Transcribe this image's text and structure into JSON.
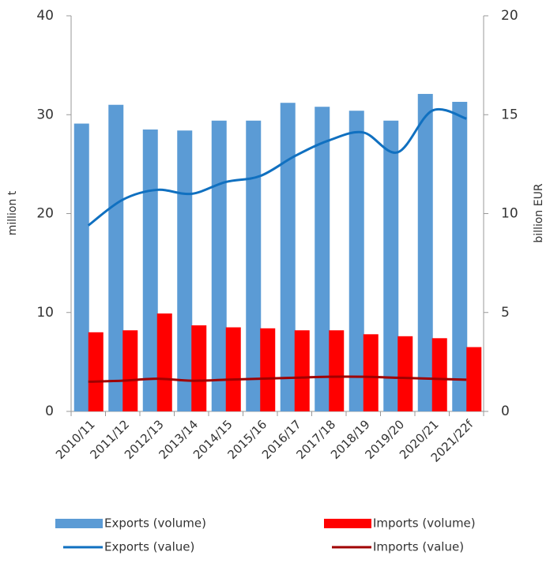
{
  "chart_data": {
    "type": "bar",
    "categories": [
      "2010/11",
      "2011/12",
      "2012/13",
      "2013/14",
      "2014/15",
      "2015/16",
      "2016/17",
      "2017/18",
      "2018/19",
      "2019/20",
      "2020/21",
      "2021/22f"
    ],
    "y_label": "million t",
    "y2_label": "billion EUR",
    "ylim": [
      0,
      40
    ],
    "yticks": [
      0,
      10,
      20,
      30,
      40
    ],
    "y2lim": [
      0,
      20
    ],
    "y2ticks": [
      0,
      5,
      10,
      15,
      20
    ],
    "series": [
      {
        "name": "Exports (volume)",
        "type": "bar",
        "color": "#5b9bd5",
        "values": [
          29.1,
          31.0,
          28.5,
          28.4,
          29.4,
          29.4,
          31.2,
          30.8,
          30.4,
          29.4,
          32.1,
          31.3
        ]
      },
      {
        "name": "Imports (volume)",
        "type": "bar",
        "color": "#ff0000",
        "values": [
          8.0,
          8.2,
          9.9,
          8.7,
          8.5,
          8.4,
          8.2,
          8.2,
          7.8,
          7.6,
          7.4,
          6.5
        ]
      },
      {
        "name": "Exports (value)",
        "type": "line",
        "axis": "y2",
        "color": "#1070c0",
        "values": [
          9.4,
          10.7,
          11.2,
          11.0,
          11.6,
          11.9,
          12.9,
          13.7,
          14.1,
          13.1,
          15.2,
          14.8
        ]
      },
      {
        "name": "Imports (value)",
        "type": "line",
        "axis": "y2",
        "color": "#a00000",
        "values": [
          1.5,
          1.55,
          1.65,
          1.55,
          1.6,
          1.65,
          1.7,
          1.75,
          1.75,
          1.7,
          1.65,
          1.6
        ]
      }
    ]
  }
}
